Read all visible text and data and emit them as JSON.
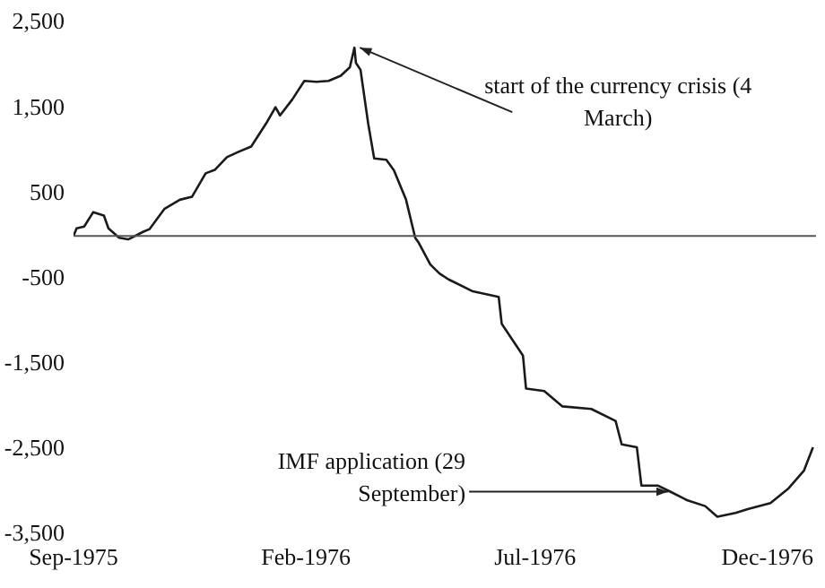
{
  "chart_data": {
    "type": "line",
    "x": [
      "1975-09-01",
      "1975-09-03",
      "1975-09-08",
      "1975-09-14",
      "1975-09-21",
      "1975-09-24",
      "1975-10-01",
      "1975-10-07",
      "1975-10-17",
      "1975-10-21",
      "1975-10-31",
      "1975-11-10",
      "1975-11-18",
      "1975-11-27",
      "1975-12-03",
      "1975-12-11",
      "1975-12-19",
      "1975-12-27",
      "1976-01-06",
      "1976-01-12",
      "1976-01-15",
      "1976-01-23",
      "1976-01-31",
      "1976-02-08",
      "1976-02-16",
      "1976-02-24",
      "1976-03-01",
      "1976-03-04",
      "1976-03-05",
      "1976-03-08",
      "1976-03-13",
      "1976-03-17",
      "1976-03-25",
      "1976-03-30",
      "1976-04-07",
      "1976-04-13",
      "1976-04-15",
      "1976-04-23",
      "1976-04-29",
      "1976-05-05",
      "1976-05-21",
      "1976-06-07",
      "1976-06-09",
      "1976-06-23",
      "1976-06-25",
      "1976-07-07",
      "1976-07-19",
      "1976-08-07",
      "1976-08-23",
      "1976-08-27",
      "1976-09-06",
      "1976-09-09",
      "1976-09-20",
      "1976-09-28",
      "1976-10-09",
      "1976-10-21",
      "1976-10-29",
      "1976-11-10",
      "1976-11-18",
      "1976-12-03",
      "1976-12-15",
      "1976-12-25",
      "1976-12-31"
    ],
    "series": [
      {
        "color": "#1a1a1a",
        "values": [
          0,
          90,
          110,
          280,
          240,
          90,
          -20,
          -40,
          50,
          80,
          320,
          425,
          460,
          735,
          775,
          925,
          990,
          1050,
          1325,
          1510,
          1415,
          1600,
          1820,
          1810,
          1820,
          1880,
          1980,
          2210,
          2030,
          1950,
          1325,
          910,
          895,
          770,
          425,
          -20,
          -70,
          -335,
          -440,
          -510,
          -650,
          -715,
          -1030,
          -1405,
          -1790,
          -1820,
          -2000,
          -2030,
          -2170,
          -2445,
          -2480,
          -2930,
          -2930,
          -3000,
          -3100,
          -3170,
          -3295,
          -3250,
          -3205,
          -3135,
          -2960,
          -2755,
          -2480
        ]
      }
    ],
    "xlim": [
      "1975-09-01",
      "1977-01-02"
    ],
    "xticks": [
      {
        "value": "1975-09-01",
        "label": "Sep-1975"
      },
      {
        "value": "1976-02-01",
        "label": "Feb-1976"
      },
      {
        "value": "1976-07-01",
        "label": "Jul-1976"
      },
      {
        "value": "1976-12-01",
        "label": "Dec-1976"
      }
    ],
    "ylim": [
      -3500,
      2500
    ],
    "yticks": [
      {
        "value": 2500,
        "label": "2,500"
      },
      {
        "value": 1500,
        "label": "1,500"
      },
      {
        "value": 500,
        "label": "500"
      },
      {
        "value": -500,
        "label": "-500"
      },
      {
        "value": -1500,
        "label": "-1,500"
      },
      {
        "value": -2500,
        "label": "-2,500"
      },
      {
        "value": -3500,
        "label": "-3,500"
      }
    ],
    "grid": false,
    "legend": false,
    "marker": "none",
    "line_style": "solid",
    "ref_lines": [
      {
        "axis": "y",
        "value": 0,
        "color": "#555555"
      }
    ],
    "annotations": [
      {
        "text": "start of the currency crisis (4 March)",
        "x": "1976-03-04",
        "y": 2210
      },
      {
        "text": "IMF application (29 September)",
        "x": "1976-09-29",
        "y": -3000
      }
    ]
  }
}
